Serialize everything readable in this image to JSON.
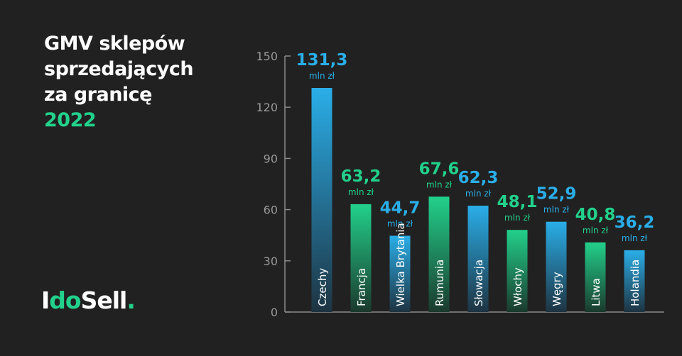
{
  "title": {
    "lines": [
      "GMV sklepów",
      "sprzedających",
      "za granicę"
    ],
    "year": "2022"
  },
  "logo": {
    "part1": "I",
    "part2": "do",
    "part3": "Sell",
    "dot": "."
  },
  "colors": {
    "background": "#212121",
    "blue": "#2aaee8",
    "green": "#22d18b",
    "axis": "#8a8a8a"
  },
  "chart_data": {
    "type": "bar",
    "categories": [
      "Czechy",
      "Francja",
      "Wielka Brytania",
      "Rumunia",
      "Słowacja",
      "Włochy",
      "Węgry",
      "Litwa",
      "Holandia"
    ],
    "values": [
      131.3,
      63.2,
      44.7,
      67.6,
      62.3,
      48.1,
      52.9,
      40.8,
      36.2
    ],
    "value_labels": [
      "131,3",
      "63,2",
      "44,7",
      "67,6",
      "62,3",
      "48,1",
      "52,9",
      "40,8",
      "36,2"
    ],
    "series_colors": [
      "blue",
      "green",
      "blue",
      "green",
      "blue",
      "green",
      "blue",
      "green",
      "blue"
    ],
    "unit": "mln zł",
    "ylim": [
      0,
      150
    ],
    "yticks": [
      "0",
      "30",
      "60",
      "90",
      "120",
      "150"
    ],
    "grid": false,
    "xlabel": "",
    "ylabel": ""
  }
}
